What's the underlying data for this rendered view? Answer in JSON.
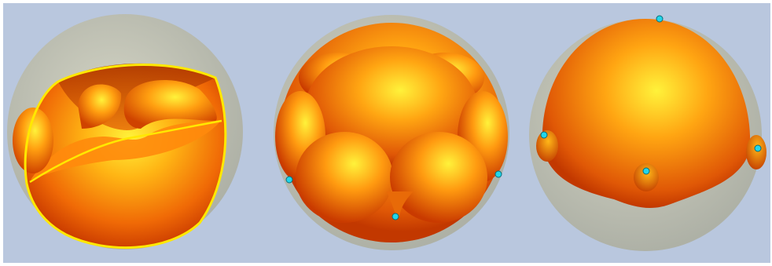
{
  "figure": {
    "panels": [
      {
        "id": "left",
        "view": "cutaway"
      },
      {
        "id": "middle",
        "view": "top"
      },
      {
        "id": "right",
        "view": "side"
      }
    ]
  },
  "colors": {
    "background": "#b9c7de",
    "body_highlight": "#fff23a",
    "body_mid": "#ff9e10",
    "body_shadow": "#c93a00",
    "enclosing_sphere": "#c8c8b4",
    "cut_edge": "#ffe800",
    "markers": "#21d6ea"
  },
  "markers_per_panel": {
    "left": 0,
    "middle": 3,
    "right": 4
  }
}
